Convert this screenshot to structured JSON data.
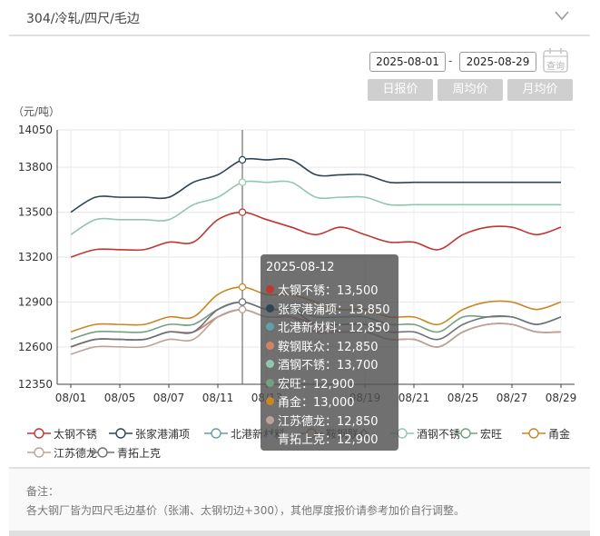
{
  "header": {
    "title": "304/冷轧/四尺/毛边",
    "icon": "chevron-down-icon"
  },
  "controls": {
    "start_date": "2025-08-01",
    "date_separator": "-",
    "end_date": "2025-08-29",
    "query_label": "查询",
    "query_icon": "calendar-icon",
    "modes": [
      "日报价",
      "周均价",
      "月均价"
    ]
  },
  "chart_data": {
    "type": "line",
    "unit_label": "（元/吨）",
    "ylim": [
      12350,
      14050
    ],
    "yticks": [
      12350,
      12600,
      12900,
      13200,
      13500,
      13800,
      14050
    ],
    "x": [
      "08/01",
      "08/04",
      "08/05",
      "08/06",
      "08/07",
      "08/08",
      "08/11",
      "08/12",
      "08/13",
      "08/14",
      "08/15",
      "08/18",
      "08/19",
      "08/20",
      "08/21",
      "08/22",
      "08/25",
      "08/26",
      "08/27",
      "08/28",
      "08/29"
    ],
    "xtick_labels": [
      "08/01",
      "08/05",
      "08/07",
      "08/11",
      "08/13",
      "08/19",
      "08/21",
      "08/25",
      "08/27",
      "08/29"
    ],
    "xtick_indices": [
      0,
      2,
      4,
      6,
      8,
      12,
      14,
      16,
      18,
      20
    ],
    "grid": true,
    "legend_position": "bottom",
    "series": [
      {
        "name": "太钢不锈",
        "color": "#c23531",
        "values": [
          13200,
          13250,
          13250,
          13250,
          13300,
          13300,
          13450,
          13500,
          13450,
          13400,
          13350,
          13400,
          13350,
          13300,
          13300,
          13250,
          13350,
          13400,
          13400,
          13350,
          13400
        ]
      },
      {
        "name": "张家港浦项",
        "color": "#2f4554",
        "values": [
          13500,
          13600,
          13600,
          13600,
          13600,
          13700,
          13750,
          13850,
          13850,
          13850,
          13750,
          13750,
          13750,
          13700,
          13700,
          13700,
          13700,
          13700,
          13700,
          13700,
          13700
        ]
      },
      {
        "name": "北港新材料",
        "color": "#61a0a8",
        "values": [
          12600,
          12650,
          12650,
          12650,
          12700,
          12700,
          12800,
          12850,
          12800,
          12800,
          12750,
          12700,
          12700,
          12650,
          12650,
          12600,
          12700,
          12750,
          12750,
          12700,
          12700
        ]
      },
      {
        "name": "鞍钢联众",
        "color": "#d48265",
        "values": [
          12600,
          12650,
          12650,
          12650,
          12700,
          12700,
          12800,
          12850,
          12800,
          12800,
          12750,
          12700,
          12700,
          12650,
          12650,
          12600,
          12700,
          12750,
          12750,
          12700,
          12700
        ]
      },
      {
        "name": "酒钢不锈",
        "color": "#91c7ae",
        "values": [
          13350,
          13450,
          13450,
          13450,
          13450,
          13550,
          13600,
          13700,
          13700,
          13700,
          13600,
          13600,
          13600,
          13550,
          13550,
          13550,
          13550,
          13550,
          13550,
          13550,
          13550
        ]
      },
      {
        "name": "宏旺",
        "color": "#749f83",
        "values": [
          12650,
          12700,
          12700,
          12700,
          12750,
          12750,
          12850,
          12900,
          12850,
          12850,
          12800,
          12800,
          12800,
          12750,
          12750,
          12700,
          12800,
          12800,
          12800,
          12750,
          12800
        ]
      },
      {
        "name": "甬金",
        "color": "#ca8622",
        "values": [
          12700,
          12750,
          12750,
          12750,
          12800,
          12800,
          12950,
          13000,
          12950,
          12950,
          12900,
          12850,
          12850,
          12800,
          12800,
          12750,
          12850,
          12900,
          12900,
          12850,
          12900
        ]
      },
      {
        "name": "江苏德龙",
        "color": "#bda29a",
        "values": [
          12550,
          12600,
          12600,
          12600,
          12650,
          12650,
          12800,
          12850,
          12800,
          12800,
          12700,
          12700,
          12700,
          12650,
          12650,
          12600,
          12700,
          12750,
          12750,
          12700,
          12700
        ]
      },
      {
        "name": "青拓上克",
        "color": "#6e7074",
        "values": [
          12600,
          12650,
          12650,
          12650,
          12700,
          12700,
          12850,
          12900,
          12850,
          12850,
          12750,
          12750,
          12750,
          12700,
          12700,
          12650,
          12750,
          12800,
          12800,
          12750,
          12800
        ]
      }
    ],
    "tooltip": {
      "date": "2025-08-12",
      "x_index": 7,
      "rows": [
        {
          "name": "太钢不锈",
          "value": "13,500",
          "color": "#c23531"
        },
        {
          "name": "张家港浦项",
          "value": "13,850",
          "color": "#2f4554"
        },
        {
          "name": "北港新材料",
          "value": "12,850",
          "color": "#61a0a8"
        },
        {
          "name": "鞍钢联众",
          "value": "12,850",
          "color": "#d48265"
        },
        {
          "name": "酒钢不锈",
          "value": "13,700",
          "color": "#91c7ae"
        },
        {
          "name": "宏旺",
          "value": "12,900",
          "color": "#749f83"
        },
        {
          "name": "甬金",
          "value": "13,000",
          "color": "#ca8622"
        },
        {
          "name": "江苏德龙",
          "value": "12,850",
          "color": "#bda29a"
        },
        {
          "name": "青拓上克",
          "value": "12,900",
          "color": "#6e7074"
        }
      ]
    }
  },
  "footer": {
    "note_title": "备注：",
    "note_text": "各大钢厂皆为四尺毛边基价（张浦、太钢切边+300），其他厚度报价请参考加价自行调整。"
  }
}
